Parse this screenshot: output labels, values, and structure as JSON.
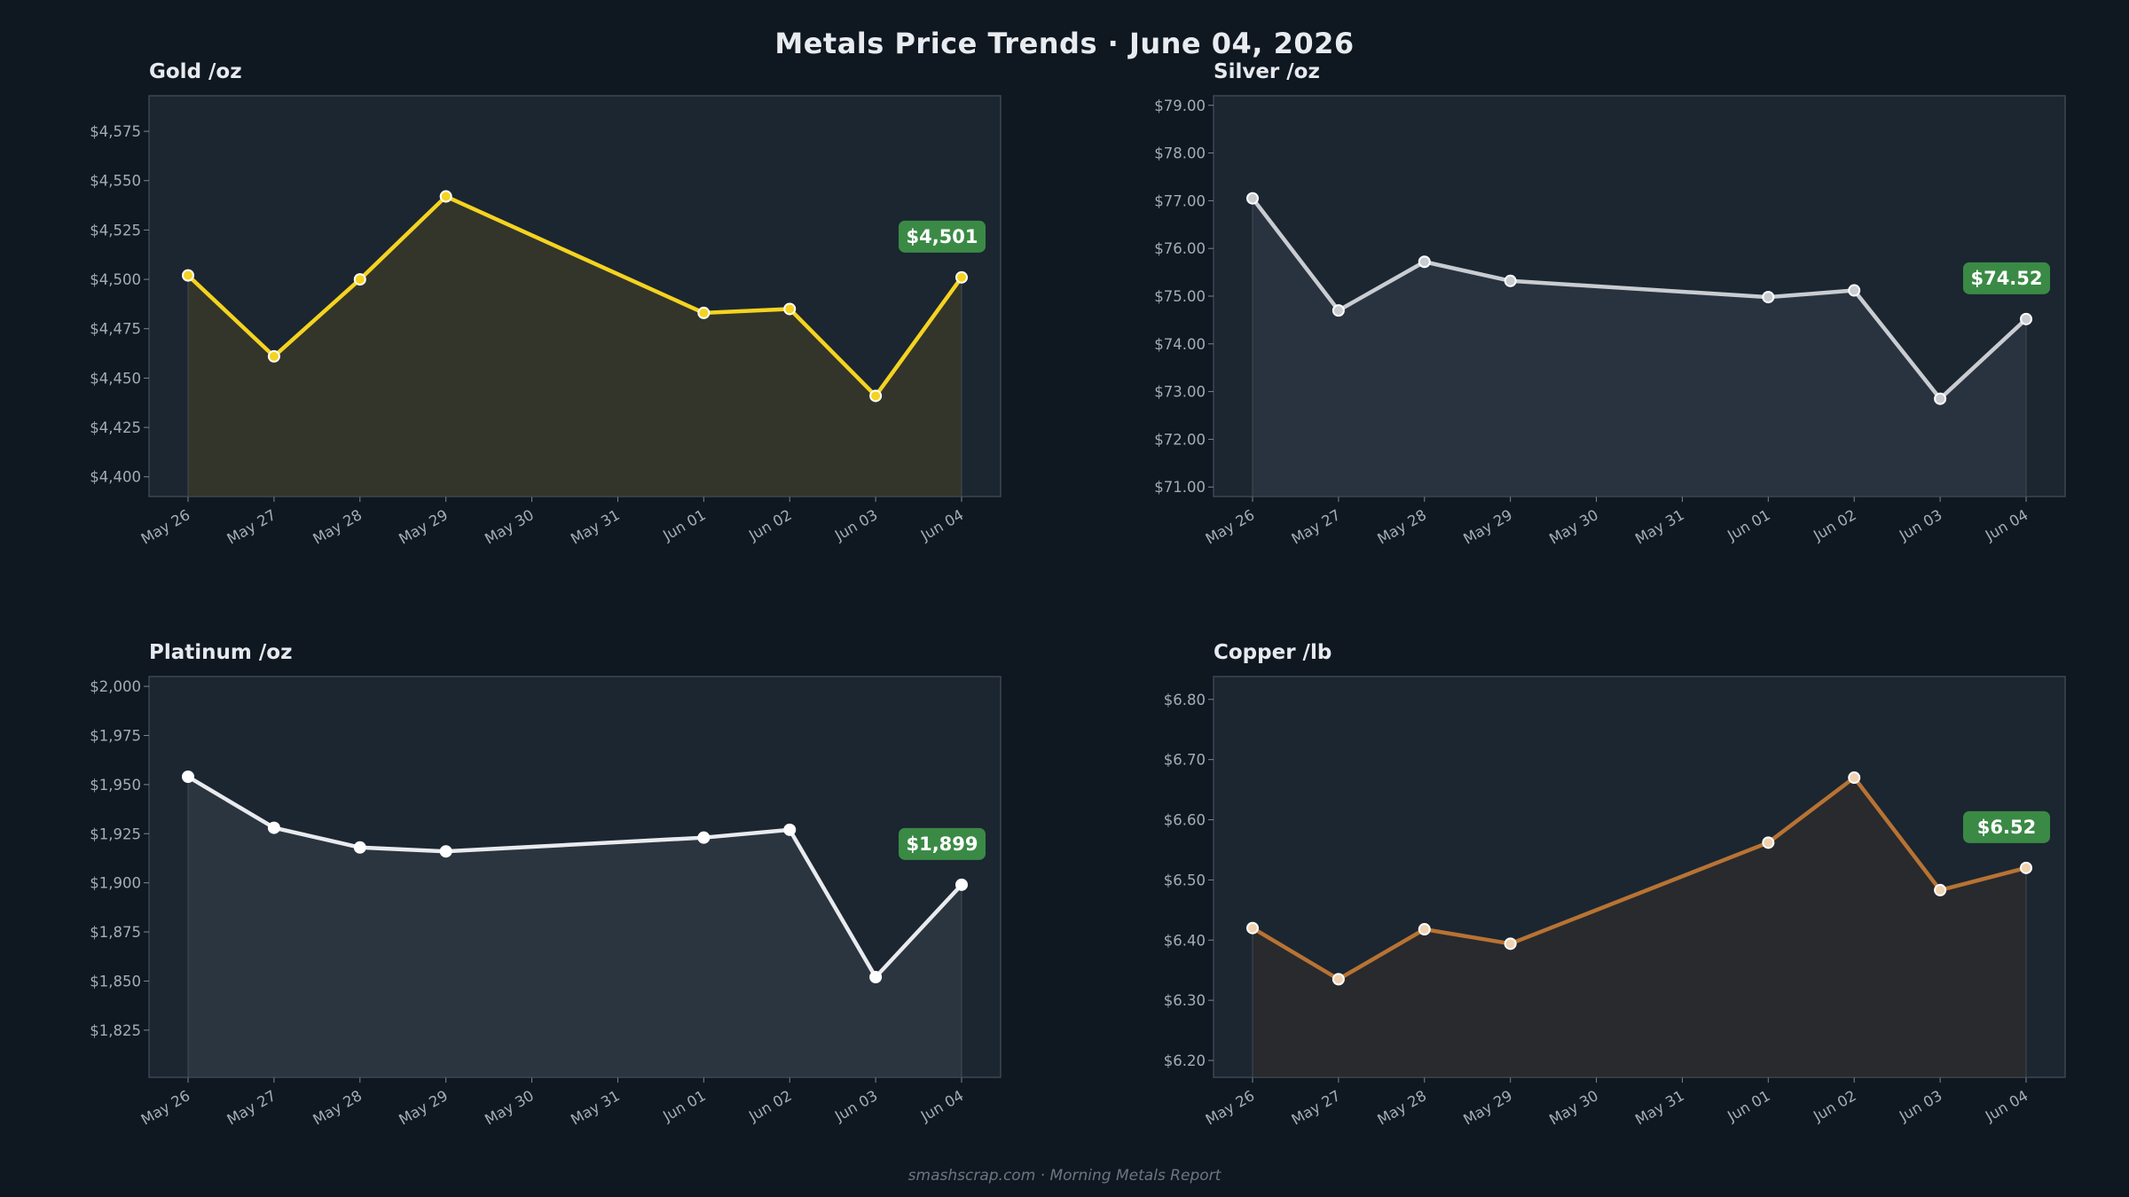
{
  "page": {
    "title": "Metals Price Trends  ·  June 04, 2026",
    "footer": "smashscrap.com  ·  Morning Metals Report"
  },
  "chart_data": [
    {
      "type": "area",
      "title": "Gold  /oz",
      "unit": "oz",
      "color": "#f5d320",
      "fill": "#35362a",
      "marker_fill": "#f5d320",
      "categories": [
        "May 26",
        "May 27",
        "May 28",
        "May 29",
        "May 30",
        "May 31",
        "Jun 01",
        "Jun 02",
        "Jun 03",
        "Jun 04"
      ],
      "points": [
        {
          "x": "May 26",
          "y": 4502
        },
        {
          "x": "May 27",
          "y": 4461
        },
        {
          "x": "May 28",
          "y": 4500
        },
        {
          "x": "May 29",
          "y": 4542
        },
        {
          "x": "Jun 01",
          "y": 4483
        },
        {
          "x": "Jun 02",
          "y": 4485
        },
        {
          "x": "Jun 03",
          "y": 4441
        },
        {
          "x": "Jun 04",
          "y": 4501
        }
      ],
      "ylim": [
        4390,
        4593
      ],
      "yticks": [
        4400,
        4425,
        4450,
        4475,
        4500,
        4525,
        4550,
        4575
      ],
      "ytick_labels": [
        "$4,400",
        "$4,425",
        "$4,450",
        "$4,475",
        "$4,500",
        "$4,525",
        "$4,550",
        "$4,575"
      ],
      "badge": "$4,501",
      "badge_color": "#3a8a45"
    },
    {
      "type": "area",
      "title": "Silver  /oz",
      "unit": "oz",
      "color": "#c9ccd1",
      "fill": "#2a3440",
      "marker_fill": "#c9ccd1",
      "categories": [
        "May 26",
        "May 27",
        "May 28",
        "May 29",
        "May 30",
        "May 31",
        "Jun 01",
        "Jun 02",
        "Jun 03",
        "Jun 04"
      ],
      "points": [
        {
          "x": "May 26",
          "y": 77.05
        },
        {
          "x": "May 27",
          "y": 74.7
        },
        {
          "x": "May 28",
          "y": 75.72
        },
        {
          "x": "May 29",
          "y": 75.32
        },
        {
          "x": "Jun 01",
          "y": 74.98
        },
        {
          "x": "Jun 02",
          "y": 75.12
        },
        {
          "x": "Jun 03",
          "y": 72.85
        },
        {
          "x": "Jun 04",
          "y": 74.52
        }
      ],
      "ylim": [
        70.8,
        79.2
      ],
      "yticks": [
        71,
        72,
        73,
        74,
        75,
        76,
        77,
        78,
        79
      ],
      "ytick_labels": [
        "$71.00",
        "$72.00",
        "$73.00",
        "$74.00",
        "$75.00",
        "$76.00",
        "$77.00",
        "$78.00",
        "$79.00"
      ],
      "badge": "$74.52",
      "badge_color": "#3a8a45"
    },
    {
      "type": "area",
      "title": "Platinum  /oz",
      "unit": "oz",
      "color": "#e9ebee",
      "fill": "#2c3640",
      "marker_fill": "#ffffff",
      "categories": [
        "May 26",
        "May 27",
        "May 28",
        "May 29",
        "May 30",
        "May 31",
        "Jun 01",
        "Jun 02",
        "Jun 03",
        "Jun 04"
      ],
      "points": [
        {
          "x": "May 26",
          "y": 1954
        },
        {
          "x": "May 27",
          "y": 1928
        },
        {
          "x": "May 28",
          "y": 1918
        },
        {
          "x": "May 29",
          "y": 1916
        },
        {
          "x": "Jun 01",
          "y": 1923
        },
        {
          "x": "Jun 02",
          "y": 1927
        },
        {
          "x": "Jun 03",
          "y": 1852
        },
        {
          "x": "Jun 04",
          "y": 1899
        }
      ],
      "ylim": [
        1801,
        2005
      ],
      "yticks": [
        1825,
        1850,
        1875,
        1900,
        1925,
        1950,
        1975,
        2000
      ],
      "ytick_labels": [
        "$1,825",
        "$1,850",
        "$1,875",
        "$1,900",
        "$1,925",
        "$1,950",
        "$1,975",
        "$2,000"
      ],
      "badge": "$1,899",
      "badge_color": "#3a8a45"
    },
    {
      "type": "area",
      "title": "Copper  /lb",
      "unit": "lb",
      "color": "#b87333",
      "fill": "#2a2a2d",
      "marker_fill": "#f0d2b0",
      "categories": [
        "May 26",
        "May 27",
        "May 28",
        "May 29",
        "May 30",
        "May 31",
        "Jun 01",
        "Jun 02",
        "Jun 03",
        "Jun 04"
      ],
      "points": [
        {
          "x": "May 26",
          "y": 6.42
        },
        {
          "x": "May 27",
          "y": 6.335
        },
        {
          "x": "May 28",
          "y": 6.418
        },
        {
          "x": "May 29",
          "y": 6.394
        },
        {
          "x": "Jun 01",
          "y": 6.562
        },
        {
          "x": "Jun 02",
          "y": 6.67
        },
        {
          "x": "Jun 03",
          "y": 6.483
        },
        {
          "x": "Jun 04",
          "y": 6.52
        }
      ],
      "ylim": [
        6.172,
        6.838
      ],
      "yticks": [
        6.2,
        6.3,
        6.4,
        6.5,
        6.6,
        6.7,
        6.8
      ],
      "ytick_labels": [
        "$6.20",
        "$6.30",
        "$6.40",
        "$6.50",
        "$6.60",
        "$6.70",
        "$6.80"
      ],
      "badge": "$6.52",
      "badge_color": "#3a8a45"
    }
  ]
}
